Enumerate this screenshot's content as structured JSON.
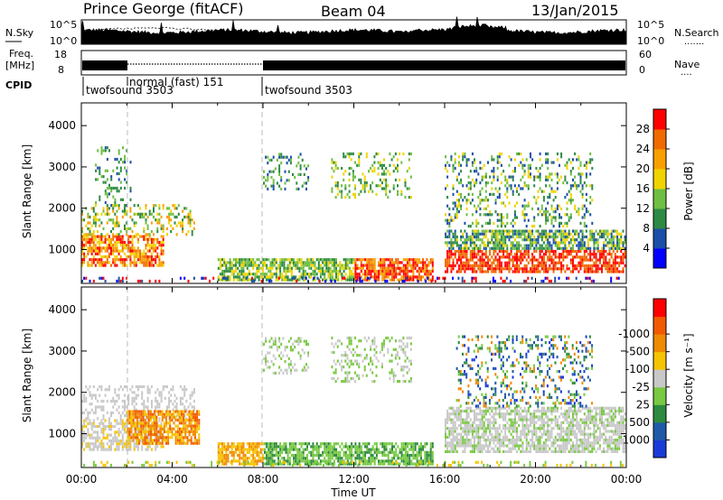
{
  "header": {
    "station": "Prince George (fitACF)",
    "beam": "Beam 04",
    "date": "13/Jan/2015"
  },
  "sky_panel": {
    "left_label": "N.Sky",
    "left_ticks": [
      "10^5",
      "10^0"
    ],
    "right_label": "N.Search",
    "right_ticks": [
      "10^5",
      "10^0"
    ],
    "right_legend": "......."
  },
  "freq_panel": {
    "left_label_line1": "Freq.",
    "left_label_line2": "[MHz]",
    "left_ticks": [
      "18",
      "8"
    ],
    "right_label": "Nave",
    "right_ticks": [
      "60",
      "0"
    ],
    "right_legend": "...."
  },
  "cpid_panel": {
    "label": "CPID",
    "programs": [
      {
        "name": "twofsound 3503",
        "start_hour": 0
      },
      {
        "name": "normal (fast) 151",
        "start_hour": 2
      },
      {
        "name": "twofsound 3503",
        "start_hour": 8
      }
    ]
  },
  "chart_data": [
    {
      "type": "heatmap",
      "ylabel": "Slant Range [km]",
      "ylim": [
        180,
        4550
      ],
      "yticks": [
        1000,
        2000,
        3000,
        4000
      ],
      "xlim": [
        0,
        24
      ],
      "colorbar": {
        "label": "Power [dB]",
        "ticks": [
          "4",
          "8",
          "12",
          "16",
          "20",
          "24",
          "28"
        ],
        "colors": [
          "#0000ff",
          "#1c4fa8",
          "#2d8a44",
          "#6fbe44",
          "#f0d400",
          "#f7a000",
          "#f06a00",
          "#ff0000"
        ]
      }
    },
    {
      "type": "heatmap",
      "ylabel": "Slant Range [km]",
      "ylim": [
        180,
        4550
      ],
      "yticks": [
        1000,
        2000,
        3000,
        4000
      ],
      "xlim": [
        0,
        24
      ],
      "colorbar": {
        "label": "Velocity [m s⁻¹]",
        "ticks": [
          "1000",
          "500",
          "25",
          "-25",
          "-100",
          "-500",
          "-1000"
        ],
        "colors": [
          "#1a3ad8",
          "#1f5aa8",
          "#2d8a3e",
          "#79c942",
          "#c8c8c8",
          "#f6c400",
          "#f08a00",
          "#f35a00",
          "#ff0000"
        ]
      }
    }
  ],
  "x_axis": {
    "ticks": [
      "00:00",
      "04:00",
      "08:00",
      "12:00",
      "16:00",
      "20:00",
      "00:00"
    ],
    "label": "Time UT"
  }
}
